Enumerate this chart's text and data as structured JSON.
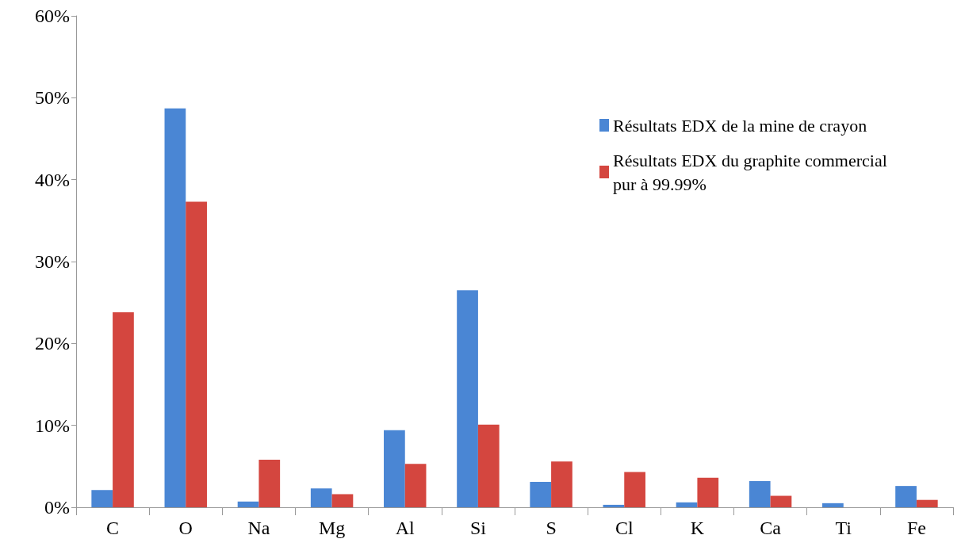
{
  "chart_data": {
    "type": "bar",
    "categories": [
      "C",
      "O",
      "Na",
      "Mg",
      "Al",
      "Si",
      "S",
      "Cl",
      "K",
      "Ca",
      "Ti",
      "Fe"
    ],
    "series": [
      {
        "name": "Résultats EDX de la mine de crayon",
        "color": "#4a86d4",
        "values": [
          2.1,
          48.7,
          0.7,
          2.3,
          9.4,
          26.5,
          3.1,
          0.3,
          0.6,
          3.2,
          0.5,
          2.6
        ]
      },
      {
        "name": "Résultats EDX du graphite commercial pur à 99.99%",
        "color": "#d4463f",
        "values": [
          23.8,
          37.3,
          5.8,
          1.6,
          5.3,
          10.1,
          5.6,
          4.3,
          3.6,
          1.4,
          0,
          0.9
        ]
      }
    ],
    "ylim": [
      0,
      60
    ],
    "yticks": [
      {
        "value": 0,
        "label": "0%"
      },
      {
        "value": 10,
        "label": "10%"
      },
      {
        "value": 20,
        "label": "20%"
      },
      {
        "value": 30,
        "label": "30%"
      },
      {
        "value": 40,
        "label": "40%"
      },
      {
        "value": 50,
        "label": "50%"
      },
      {
        "value": 60,
        "label": "60%"
      }
    ],
    "grid": false,
    "legend": "top right"
  }
}
